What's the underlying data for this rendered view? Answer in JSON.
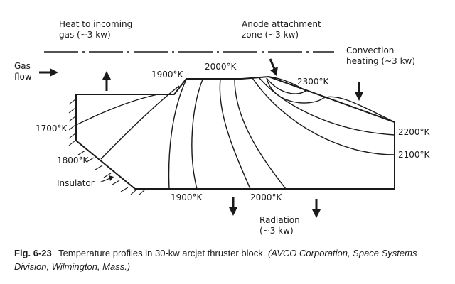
{
  "labels": {
    "heat_to_gas": [
      "Heat to incoming",
      "gas (~3 kw)"
    ],
    "anode_zone": [
      "Anode attachment",
      "zone (~3 kw)"
    ],
    "convection": [
      "Convection",
      "heating (~3 kw)"
    ],
    "gas_flow": [
      "Gas",
      "flow"
    ],
    "t1900_top": "1900°K",
    "t2000_top": "2000°K",
    "t2300": "2300°K",
    "t1700": "1700°K",
    "t2200": "2200°K",
    "t1800": "1800°K",
    "t2100": "2100°K",
    "insulator": "Insulator",
    "t1900_bottom": "1900°K",
    "t2000_bottom": "2000°K",
    "radiation": [
      "Radiation",
      "(~3 kw)"
    ]
  },
  "caption": {
    "figure": "Fig. 6-23",
    "text": "Temperature profiles in 30-kw arcjet thruster block.",
    "source": "(AVCO Corporation, Space Systems Division, Wilmington, Mass.)"
  }
}
